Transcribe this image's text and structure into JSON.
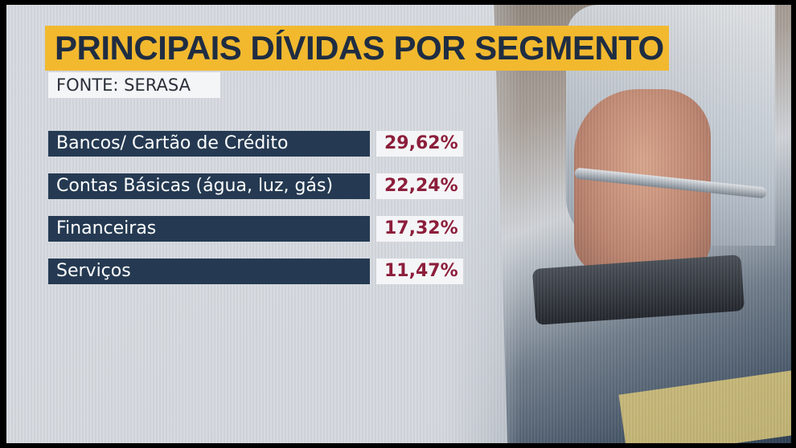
{
  "title": "PRINCIPAIS DÍVIDAS POR SEGMENTO",
  "source": "FONTE: SERASA",
  "colors": {
    "title_bg": "#f2b92f",
    "title_text": "#1f2d42",
    "label_bg": "#253a52",
    "value_text": "#8c1e3b"
  },
  "chart_data": {
    "type": "table",
    "title": "PRINCIPAIS DÍVIDAS POR SEGMENTO",
    "source": "FONTE: SERASA",
    "categories": [
      "Bancos/ Cartão de Crédito",
      "Contas Básicas (água, luz, gás)",
      "Financeiras",
      "Serviços"
    ],
    "values": [
      29.62,
      22.24,
      17.32,
      11.47
    ],
    "value_labels": [
      "29,62%",
      "22,24%",
      "17,32%",
      "11,47%"
    ]
  }
}
